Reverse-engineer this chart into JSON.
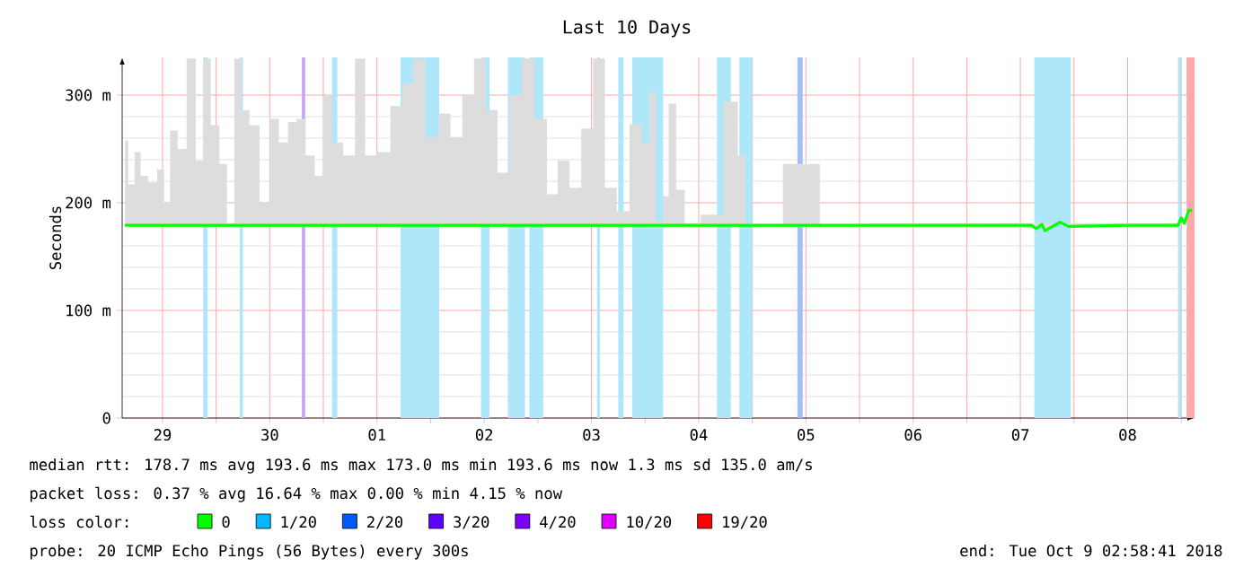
{
  "chart_data": {
    "type": "line",
    "title": "Last 10 Days",
    "ylabel": "Seconds",
    "xlim": [
      "2018-09-29T02:58",
      "2018-10-09T02:58"
    ],
    "ylim": [
      0,
      335
    ],
    "xticks": [
      {
        "value": "2018-09-29T12:00",
        "label": "29"
      },
      {
        "value": "2018-09-30T00:00",
        "label": null
      },
      {
        "value": "2018-09-30T12:00",
        "label": "30"
      },
      {
        "value": "2018-10-01T00:00",
        "label": null
      },
      {
        "value": "2018-10-01T12:00",
        "label": "01"
      },
      {
        "value": "2018-10-02T00:00",
        "label": null
      },
      {
        "value": "2018-10-02T12:00",
        "label": "02"
      },
      {
        "value": "2018-10-03T00:00",
        "label": null
      },
      {
        "value": "2018-10-03T12:00",
        "label": "03"
      },
      {
        "value": "2018-10-04T00:00",
        "label": null
      },
      {
        "value": "2018-10-04T12:00",
        "label": "04"
      },
      {
        "value": "2018-10-05T00:00",
        "label": null
      },
      {
        "value": "2018-10-05T12:00",
        "label": "05"
      },
      {
        "value": "2018-10-06T00:00",
        "label": null
      },
      {
        "value": "2018-10-06T12:00",
        "label": "06"
      },
      {
        "value": "2018-10-07T00:00",
        "label": null
      },
      {
        "value": "2018-10-07T12:00",
        "label": "07"
      },
      {
        "value": "2018-10-08T00:00",
        "label": null
      },
      {
        "value": "2018-10-08T12:00",
        "label": "08"
      },
      {
        "value": "2018-10-09T00:00",
        "label": null
      }
    ],
    "yticks": [
      {
        "value": 0,
        "label": "0"
      },
      {
        "value": 100,
        "label": "100 m"
      },
      {
        "value": 200,
        "label": "200 m"
      },
      {
        "value": 300,
        "label": "300 m"
      }
    ],
    "grid": true,
    "legend": "bottom",
    "legend_title": "loss color:",
    "series": [
      {
        "name": "0",
        "color": "#00ff00",
        "x": [
          "2018-09-29T03:36",
          "2018-09-29T05:02",
          "2018-09-29T06:29",
          "2018-09-29T07:41",
          "2018-09-29T09:50",
          "2018-09-29T11:46",
          "2018-09-29T12:58",
          "2018-09-29T14:24",
          "2018-09-29T16:19",
          "2018-09-29T18:29",
          "2018-09-29T20:24",
          "2018-09-29T21:50",
          "2018-09-29T23:46",
          "2018-09-30T01:41",
          "2018-09-30T03:07",
          "2018-09-30T05:02",
          "2018-09-30T06:29",
          "2018-09-30T08:24",
          "2018-09-30T11:02",
          "2018-09-30T12:58",
          "2018-09-30T15:07",
          "2018-09-30T17:02",
          "2018-09-30T18:58",
          "2018-09-30T21:07",
          "2018-09-30T23:02",
          "2018-10-01T00:58",
          "2018-10-01T03:07",
          "2018-10-01T05:46",
          "2018-10-01T08:24",
          "2018-10-01T10:19",
          "2018-10-01T13:41",
          "2018-10-01T16:19",
          "2018-10-01T18:58",
          "2018-10-01T21:07",
          "2018-10-02T00:29",
          "2018-10-02T03:07",
          "2018-10-02T05:46",
          "2018-10-02T08:24",
          "2018-10-02T11:02",
          "2018-10-02T13:41",
          "2018-10-02T16:19",
          "2018-10-02T18:58",
          "2018-10-02T21:36",
          "2018-10-03T00:58",
          "2018-10-03T03:07",
          "2018-10-03T05:46",
          "2018-10-03T08:24",
          "2018-10-03T11:02",
          "2018-10-03T13:41",
          "2018-10-03T16:19",
          "2018-10-03T18:58",
          "2018-10-03T22:05",
          "2018-10-04T00:29",
          "2018-10-04T01:26",
          "2018-10-04T03:22",
          "2018-10-04T04:34",
          "2018-10-04T06:00",
          "2018-10-04T07:55",
          "2018-10-04T09:50",
          "2018-10-04T15:07",
          "2018-10-04T19:55",
          "2018-10-04T21:36",
          "2018-10-04T23:17",
          "2018-10-05T14:24",
          "2018-10-05T15:50",
          "2018-10-06T12:00",
          "2018-10-07T14:24",
          "2018-10-07T15:36",
          "2018-10-07T16:48",
          "2018-10-07T17:31",
          "2018-10-07T19:12",
          "2018-10-07T20:53",
          "2018-10-07T22:48",
          "2018-10-08T12:00",
          "2018-10-08T23:17",
          "2018-10-09T00:00",
          "2018-10-09T00:43",
          "2018-10-09T01:41",
          "2018-10-09T02:24"
        ],
        "values": [
          179,
          179,
          179,
          179,
          179,
          179,
          179,
          179,
          179,
          179,
          179,
          179,
          179,
          179,
          179,
          179,
          179,
          179,
          179,
          179,
          179,
          179,
          179,
          179,
          179,
          179,
          179,
          179,
          179,
          179,
          179,
          179,
          179,
          179,
          179,
          179,
          179,
          179,
          179,
          179,
          179,
          179,
          179,
          179,
          179,
          179,
          179,
          179,
          179,
          179,
          179,
          179,
          179,
          179,
          179,
          179,
          179,
          179,
          179,
          179,
          179,
          179,
          179,
          179,
          179,
          179,
          179,
          176,
          180,
          174,
          178,
          182,
          178,
          179,
          179,
          186,
          181,
          193,
          193
        ],
        "lower": [
          178,
          178,
          178,
          178,
          178,
          178,
          178,
          178,
          178,
          178,
          178,
          178,
          178,
          178,
          178,
          178,
          178,
          178,
          178,
          178,
          178,
          178,
          178,
          178,
          178,
          178,
          178,
          178,
          178,
          178,
          178,
          178,
          178,
          178,
          178,
          178,
          178,
          178,
          178,
          178,
          178,
          178,
          178,
          178,
          178,
          178,
          178,
          178,
          178,
          178,
          178,
          178,
          178,
          178,
          178,
          178,
          178,
          178,
          178,
          178,
          178,
          178,
          178,
          178,
          178,
          178,
          178,
          176,
          180,
          174,
          178,
          182,
          178,
          178,
          178,
          186,
          181,
          193,
          193
        ],
        "upper": [
          258,
          217,
          247,
          225,
          219,
          231,
          200,
          267,
          250,
          334,
          239,
          334,
          272,
          236,
          181,
          334,
          286,
          272,
          200,
          278,
          256,
          275,
          278,
          244,
          225,
          300,
          256,
          244,
          334,
          244,
          247,
          290,
          311,
          334,
          261,
          283,
          261,
          300,
          334,
          286,
          228,
          300,
          334,
          278,
          208,
          239,
          214,
          269,
          334,
          214,
          192,
          273,
          256,
          303,
          183,
          206,
          292,
          212,
          181,
          189,
          294,
          244,
          179,
          236,
          179,
          181,
          181,
          181,
          182,
          181,
          181,
          183,
          181,
          181,
          181,
          186,
          181,
          193,
          193
        ]
      },
      {
        "name": "1/20",
        "color": "#00b8ff"
      },
      {
        "name": "2/20",
        "color": "#0059ff"
      },
      {
        "name": "3/20",
        "color": "#5e00ff"
      },
      {
        "name": "4/20",
        "color": "#7e00ff"
      },
      {
        "name": "10/20",
        "color": "#dd00ff"
      },
      {
        "name": "19/20",
        "color": "#ff0000"
      }
    ],
    "bands": [
      {
        "axis": "x",
        "from": "2018-09-29T21:07",
        "to": "2018-09-29T22:05",
        "color": "#aee6fa"
      },
      {
        "axis": "x",
        "from": "2018-09-30T05:17",
        "to": "2018-09-30T06:00",
        "color": "#aee6fa"
      },
      {
        "axis": "x",
        "from": "2018-09-30T19:12",
        "to": "2018-09-30T19:55",
        "color": "#c8a0f8"
      },
      {
        "axis": "x",
        "from": "2018-10-01T01:55",
        "to": "2018-10-01T03:07",
        "color": "#aee6fa"
      },
      {
        "axis": "x",
        "from": "2018-10-01T17:17",
        "to": "2018-10-02T01:55",
        "color": "#aee6fa"
      },
      {
        "axis": "x",
        "from": "2018-10-02T11:17",
        "to": "2018-10-02T13:12",
        "color": "#aee6fa"
      },
      {
        "axis": "x",
        "from": "2018-10-02T17:17",
        "to": "2018-10-02T21:07",
        "color": "#aee6fa"
      },
      {
        "axis": "x",
        "from": "2018-10-02T22:05",
        "to": "2018-10-03T01:12",
        "color": "#aee6fa"
      },
      {
        "axis": "x",
        "from": "2018-10-03T13:12",
        "to": "2018-10-03T13:55",
        "color": "#aee6fa"
      },
      {
        "axis": "x",
        "from": "2018-10-03T18:00",
        "to": "2018-10-03T19:12",
        "color": "#aee6fa"
      },
      {
        "axis": "x",
        "from": "2018-10-03T21:07",
        "to": "2018-10-04T04:05",
        "color": "#aee6fa"
      },
      {
        "axis": "x",
        "from": "2018-10-04T16:05",
        "to": "2018-10-04T19:12",
        "color": "#aee6fa"
      },
      {
        "axis": "x",
        "from": "2018-10-04T21:07",
        "to": "2018-10-05T00:00",
        "color": "#aee6fa"
      },
      {
        "axis": "x",
        "from": "2018-10-05T10:05",
        "to": "2018-10-05T11:17",
        "color": "#a0bff8"
      },
      {
        "axis": "x",
        "from": "2018-10-07T15:07",
        "to": "2018-10-07T23:17",
        "color": "#aee6fa"
      },
      {
        "axis": "x",
        "from": "2018-10-08T23:17",
        "to": "2018-10-09T00:00",
        "color": "#aee6fa"
      },
      {
        "axis": "x",
        "from": "2018-10-09T01:12",
        "to": "2018-10-09T02:58",
        "color": "#ffa8a8"
      }
    ],
    "annotations": [
      "median rtt:  178.7 ms avg  193.6 ms max  173.0 ms min  193.6 ms now  1.3 ms sd  135.0   am/s",
      "packet loss: 0.37 % avg  16.64 % max  0.00 % min  4.15 % now",
      "probe:       20 ICMP Echo Pings (56 Bytes) every 300s",
      "end: Tue Oct  9 02:58:41 2018"
    ]
  }
}
